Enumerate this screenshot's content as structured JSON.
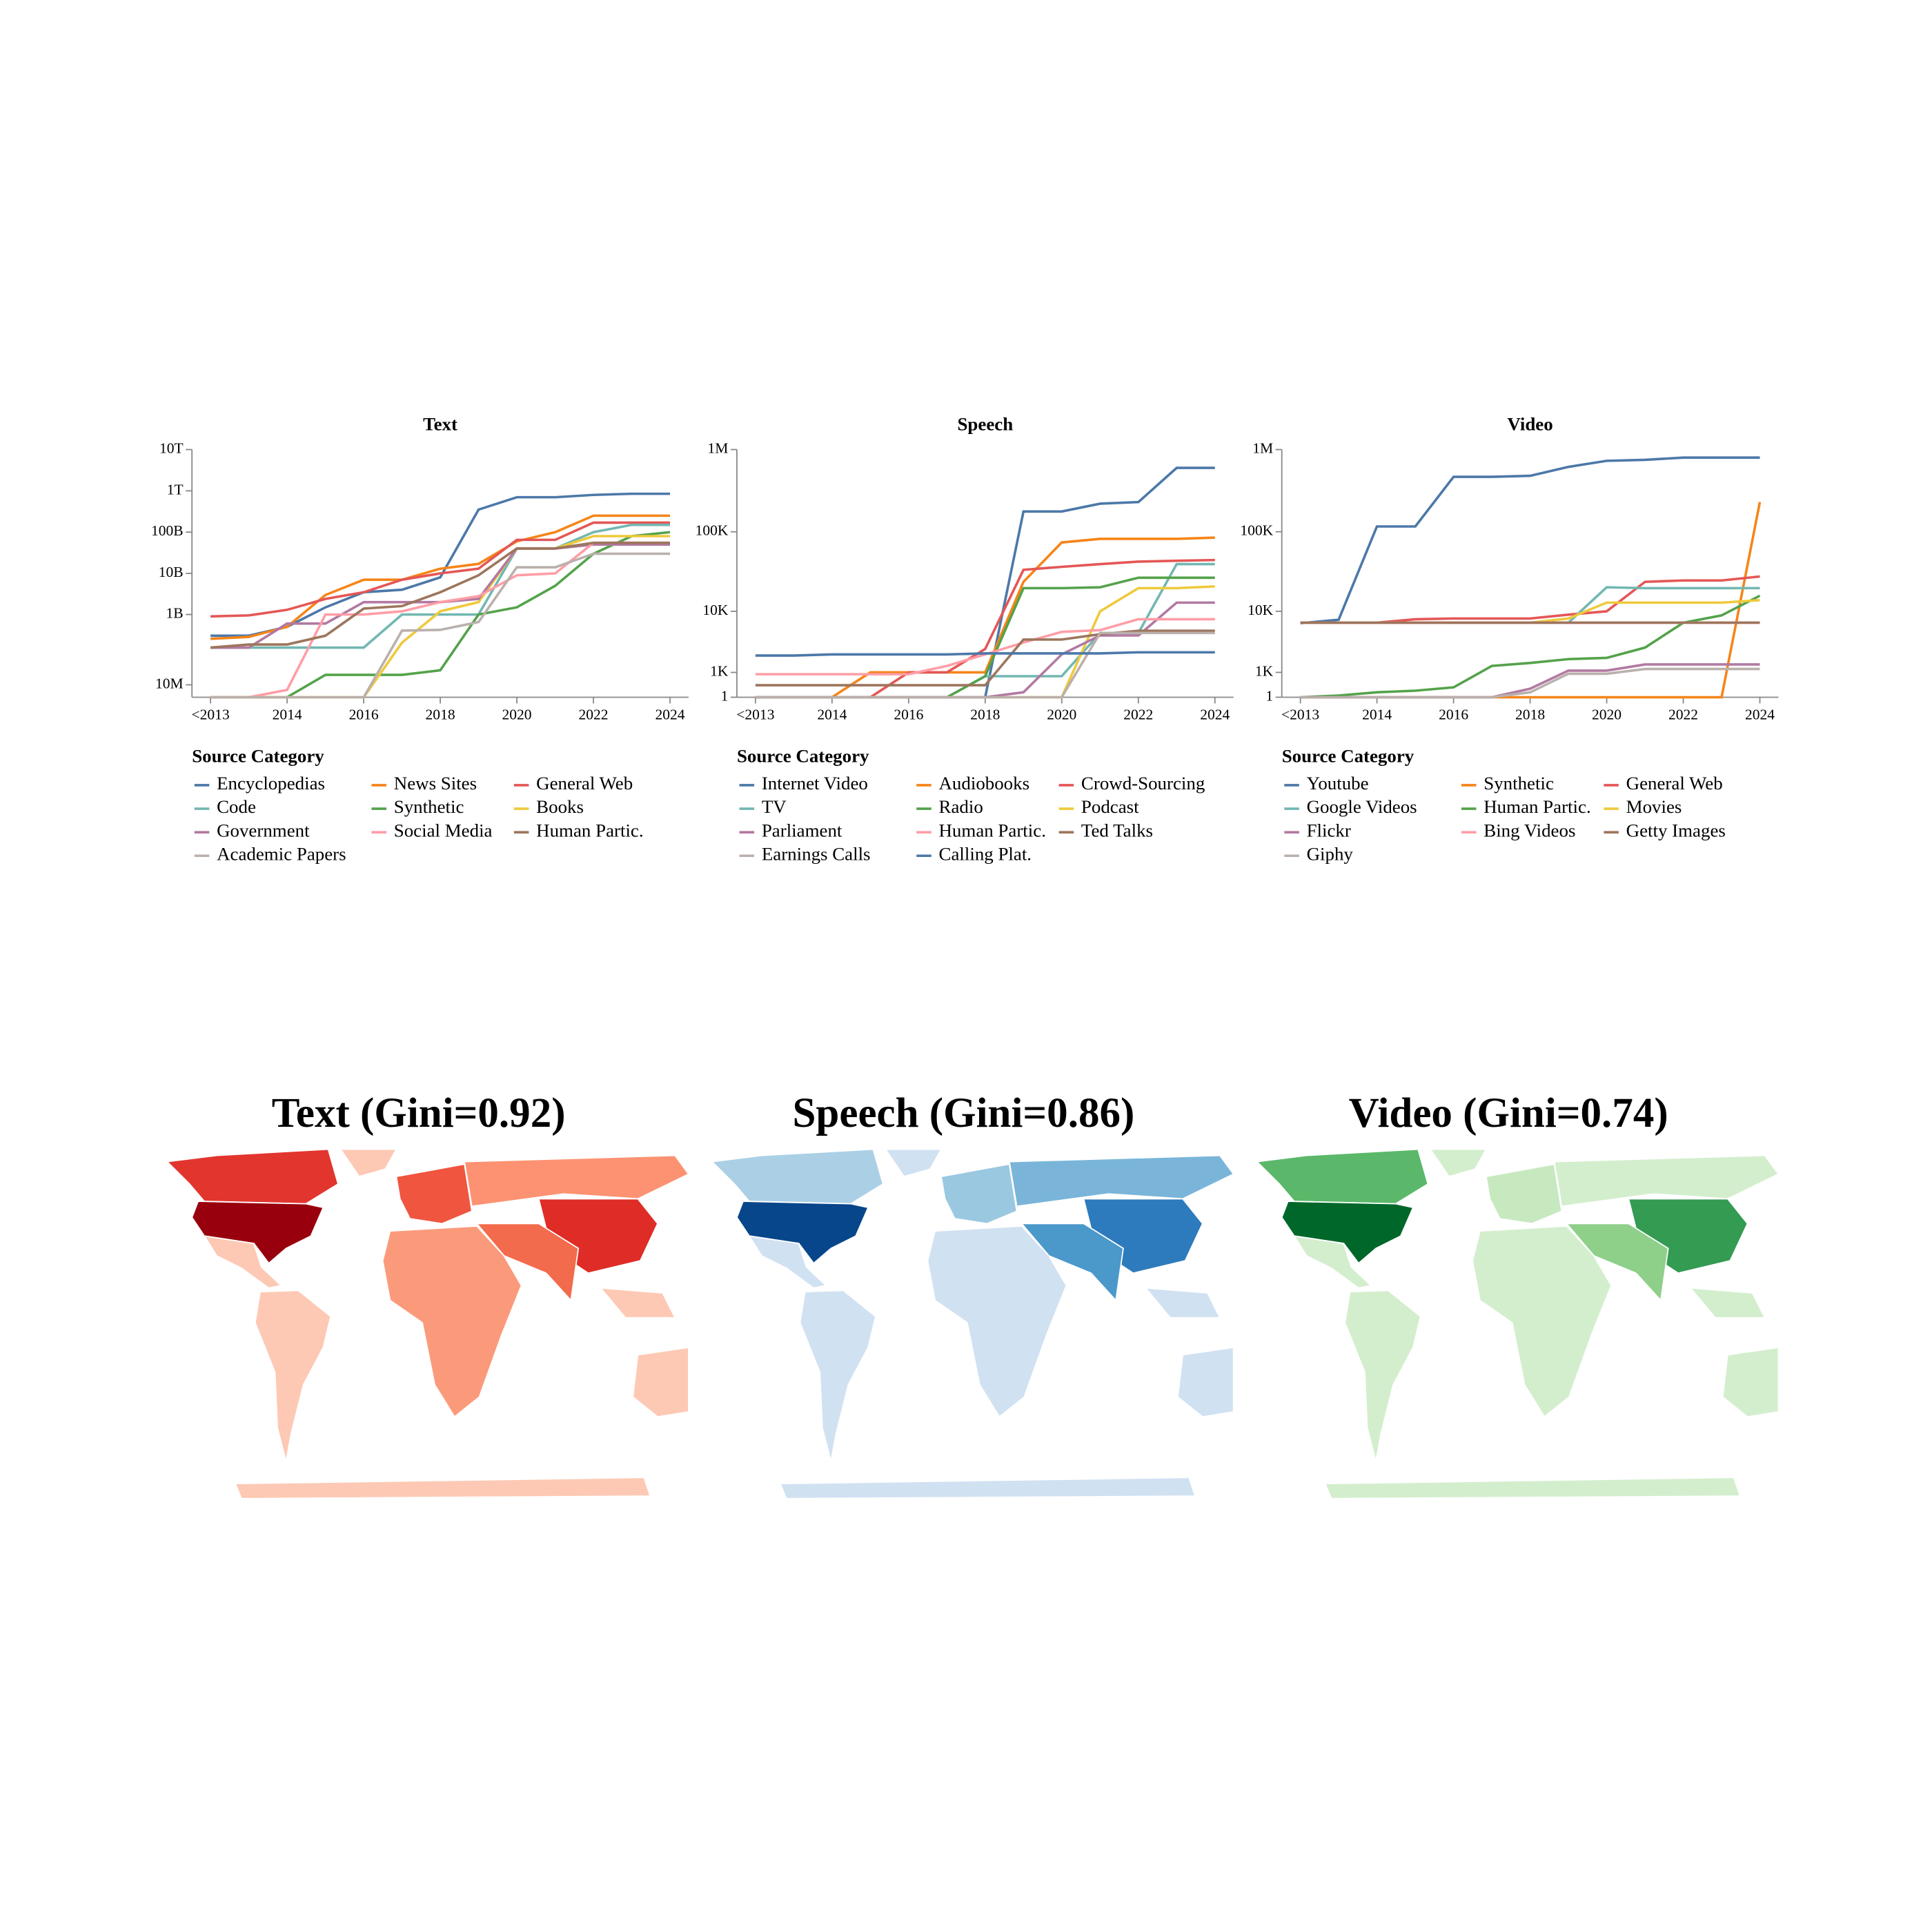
{
  "chart_data": [
    {
      "type": "line",
      "title": "Text",
      "legend_title": "Source Category",
      "yscale": "symlog",
      "symlog_constant": 10000000.0,
      "categories": [
        "<2013",
        null,
        "2014",
        null,
        "2016",
        null,
        "2018",
        null,
        "2020",
        null,
        "2022",
        null,
        "2024"
      ],
      "ylim": [
        0,
        10000000000000.0
      ],
      "yticks": [
        {
          "value": 10000000.0,
          "label": "10M"
        },
        {
          "value": 1000000000.0,
          "label": "1B"
        },
        {
          "value": 10000000000.0,
          "label": "10B"
        },
        {
          "value": 100000000000.0,
          "label": "100B"
        },
        {
          "value": 1000000000000.0,
          "label": "1T"
        },
        {
          "value": 10000000000000.0,
          "label": "10T"
        }
      ],
      "series": [
        {
          "name": "Encyclopedias",
          "color": "#4c78a8",
          "values": [
            300000000.0,
            300000000.0,
            500000000.0,
            1500000000.0,
            3500000000.0,
            4000000000.0,
            8000000000.0,
            350000000000.0,
            700000000000.0,
            700000000000.0,
            800000000000.0,
            850000000000.0,
            850000000000.0
          ]
        },
        {
          "name": "News Sites",
          "color": "#f58518",
          "values": [
            250000000.0,
            280000000.0,
            500000000.0,
            3000000000.0,
            7000000000.0,
            7000000000.0,
            13000000000.0,
            17000000000.0,
            60000000000.0,
            100000000000.0,
            250000000000.0,
            250000000000.0,
            250000000000.0
          ]
        },
        {
          "name": "General Web",
          "color": "#e45756",
          "values": [
            900000000.0,
            950000000.0,
            1300000000.0,
            2400000000.0,
            3500000000.0,
            7000000000.0,
            10000000000.0,
            13000000000.0,
            65000000000.0,
            65000000000.0,
            170000000000.0,
            170000000000.0,
            170000000000.0
          ]
        },
        {
          "name": "Code",
          "color": "#72b7b2",
          "values": [
            150000000.0,
            150000000.0,
            150000000.0,
            150000000.0,
            150000000.0,
            1000000000.0,
            1000000000.0,
            1000000000.0,
            40000000000.0,
            40000000000.0,
            100000000000.0,
            150000000000.0,
            150000000000.0
          ]
        },
        {
          "name": "Synthetic",
          "color": "#54a24b",
          "values": [
            0,
            0,
            0,
            25000000.0,
            25000000.0,
            25000000.0,
            35000000.0,
            1000000000.0,
            1500000000.0,
            5000000000.0,
            30000000000.0,
            80000000000.0,
            100000000000.0
          ]
        },
        {
          "name": "Books",
          "color": "#eeca3b",
          "values": [
            0,
            0,
            0,
            0,
            0,
            200000000.0,
            1200000000.0,
            2000000000.0,
            40000000000.0,
            40000000000.0,
            80000000000.0,
            80000000000.0,
            80000000000.0
          ]
        },
        {
          "name": "Government",
          "color": "#b279a2",
          "values": [
            150000000.0,
            150000000.0,
            600000000.0,
            600000000.0,
            2000000000.0,
            2000000000.0,
            2000000000.0,
            2400000000.0,
            40000000000.0,
            40000000000.0,
            50000000000.0,
            50000000000.0,
            50000000000.0
          ]
        },
        {
          "name": "Social Media",
          "color": "#ff9da6",
          "values": [
            0,
            0,
            5000000.0,
            1000000000.0,
            1000000000.0,
            1200000000.0,
            2000000000.0,
            2800000000.0,
            9000000000.0,
            10000000000.0,
            55000000000.0,
            55000000000.0,
            55000000000.0
          ]
        },
        {
          "name": "Human Partic.",
          "color": "#9d755d",
          "values": [
            150000000.0,
            180000000.0,
            180000000.0,
            300000000.0,
            1400000000.0,
            1600000000.0,
            3500000000.0,
            9000000000.0,
            40000000000.0,
            40000000000.0,
            55000000000.0,
            55000000000.0,
            55000000000.0
          ]
        },
        {
          "name": "Academic Papers",
          "color": "#bab0ac",
          "values": [
            0,
            0,
            0,
            0,
            0,
            400000000.0,
            420000000.0,
            650000000.0,
            14000000000.0,
            14000000000.0,
            30000000000.0,
            30000000000.0,
            30000000000.0
          ]
        }
      ]
    },
    {
      "type": "line",
      "title": "Speech",
      "legend_title": "Source Category",
      "yscale": "symlog",
      "symlog_constant": 1000,
      "categories": [
        "<2013",
        null,
        "2014",
        null,
        "2016",
        null,
        "2018",
        null,
        "2020",
        null,
        "2022",
        null,
        "2024"
      ],
      "ylim": [
        0,
        1000000
      ],
      "yticks": [
        1,
        {
          "value": 1000,
          "label": "1K"
        },
        {
          "value": 10000,
          "label": "10K"
        },
        {
          "value": 100000,
          "label": "100K"
        },
        {
          "value": 1000000,
          "label": "1M"
        }
      ],
      "series": [
        {
          "name": "Internet Video",
          "color": "#4c78a8",
          "values": [
            0,
            0,
            0,
            0,
            0,
            0,
            0,
            177000,
            177000,
            220000,
            230000,
            600000,
            600000
          ]
        },
        {
          "name": "Audiobooks",
          "color": "#f58518",
          "values": [
            0,
            0,
            0,
            1000,
            1000,
            1000,
            1000,
            24000,
            74000,
            82000,
            82000,
            82000,
            85000
          ]
        },
        {
          "name": "Crowd-Sourcing",
          "color": "#e45756",
          "values": [
            0,
            0,
            0,
            0,
            1000,
            1000,
            2850,
            34000,
            37000,
            40000,
            43000,
            44000,
            45000
          ]
        },
        {
          "name": "TV",
          "color": "#72b7b2",
          "values": [
            0,
            0,
            0,
            0,
            0,
            0,
            800,
            800,
            800,
            5000,
            5000,
            40000,
            40000
          ]
        },
        {
          "name": "Radio",
          "color": "#54a24b",
          "values": [
            0,
            0,
            0,
            0,
            0,
            0,
            800,
            20000,
            20000,
            20500,
            27000,
            27000,
            27000
          ]
        },
        {
          "name": "Podcast",
          "color": "#eeca3b",
          "values": [
            0,
            0,
            0,
            0,
            0,
            0,
            0,
            0,
            0,
            10000,
            20000,
            20000,
            21000
          ]
        },
        {
          "name": "Parliament",
          "color": "#b279a2",
          "values": [
            0,
            0,
            0,
            0,
            0,
            0,
            0,
            150,
            2300,
            4600,
            4600,
            13000,
            13000
          ]
        },
        {
          "name": "Human Partic.",
          "color": "#ff9da6",
          "values": [
            900,
            900,
            900,
            900,
            900,
            1400,
            2300,
            3600,
            5200,
            5500,
            7800,
            7800,
            7800
          ]
        },
        {
          "name": "Ted Talks",
          "color": "#9d755d",
          "values": [
            400,
            400,
            400,
            400,
            400,
            400,
            400,
            4000,
            4000,
            4800,
            5400,
            5400,
            5400
          ]
        },
        {
          "name": "Earnings Calls",
          "color": "#bab0ac",
          "values": [
            0,
            0,
            0,
            0,
            0,
            0,
            0,
            0,
            0,
            5000,
            5000,
            5000,
            5000
          ]
        },
        {
          "name": "Calling Plat.",
          "color": "#4c78a8",
          "values": [
            2200,
            2200,
            2300,
            2300,
            2300,
            2300,
            2400,
            2400,
            2400,
            2400,
            2500,
            2500,
            2500
          ]
        }
      ]
    },
    {
      "type": "line",
      "title": "Video",
      "legend_title": "Source Category",
      "yscale": "symlog",
      "symlog_constant": 1000,
      "categories": [
        "<2013",
        null,
        "2014",
        null,
        "2016",
        null,
        "2018",
        null,
        "2020",
        null,
        "2022",
        null,
        "2024"
      ],
      "ylim": [
        0,
        1000000
      ],
      "yticks": [
        1,
        {
          "value": 1000,
          "label": "1K"
        },
        {
          "value": 10000,
          "label": "10K"
        },
        {
          "value": 100000,
          "label": "100K"
        },
        {
          "value": 1000000,
          "label": "1M"
        }
      ],
      "series": [
        {
          "name": "Youtube",
          "color": "#4c78a8",
          "values": [
            6900,
            7700,
            116000,
            116000,
            467000,
            467000,
            480000,
            616000,
            730000,
            750000,
            800000,
            800000,
            800000
          ]
        },
        {
          "name": "Synthetic",
          "color": "#f58518",
          "values": [
            0,
            0,
            0,
            0,
            0,
            0,
            0,
            0,
            0,
            0,
            0,
            0,
            230000
          ]
        },
        {
          "name": "General Web",
          "color": "#e45756",
          "values": [
            7000,
            7000,
            7000,
            7800,
            8000,
            8000,
            8000,
            9000,
            10000,
            24000,
            25000,
            25000,
            28000
          ]
        },
        {
          "name": "Google Videos",
          "color": "#72b7b2",
          "values": [
            7000,
            7000,
            7000,
            7000,
            7000,
            7000,
            7000,
            7000,
            20500,
            20000,
            20000,
            20000,
            20000
          ]
        },
        {
          "name": "Human Partic.",
          "color": "#54a24b",
          "values": [
            0,
            50,
            150,
            200,
            320,
            1400,
            1600,
            1900,
            2000,
            3000,
            7000,
            8800,
            16000
          ]
        },
        {
          "name": "Movies",
          "color": "#eeca3b",
          "values": [
            7000,
            7000,
            7000,
            7000,
            7000,
            7000,
            7000,
            8000,
            13000,
            13000,
            13000,
            13000,
            14000
          ]
        },
        {
          "name": "Flickr",
          "color": "#b279a2",
          "values": [
            0,
            0,
            0,
            0,
            0,
            0,
            270,
            1100,
            1100,
            1500,
            1500,
            1500,
            1500
          ]
        },
        {
          "name": "Bing Videos",
          "color": "#ff9da6",
          "values": [
            7000,
            7000,
            7000,
            7000,
            7000,
            7000,
            7000,
            7000,
            7000,
            7000,
            7000,
            7000,
            7000
          ]
        },
        {
          "name": "Getty Images",
          "color": "#9d755d",
          "values": [
            7000,
            7000,
            7000,
            7000,
            7000,
            7000,
            7000,
            7000,
            7000,
            7000,
            7000,
            7000,
            7000
          ]
        },
        {
          "name": "Giphy",
          "color": "#bab0ac",
          "values": [
            0,
            0,
            0,
            0,
            0,
            0,
            150,
            930,
            930,
            1200,
            1200,
            1200,
            1200
          ]
        }
      ]
    }
  ],
  "maps": [
    {
      "title": "Text (Gini=0.92)"
    },
    {
      "title": "Speech (Gini=0.86)"
    },
    {
      "title": "Video (Gini=0.74)"
    }
  ]
}
